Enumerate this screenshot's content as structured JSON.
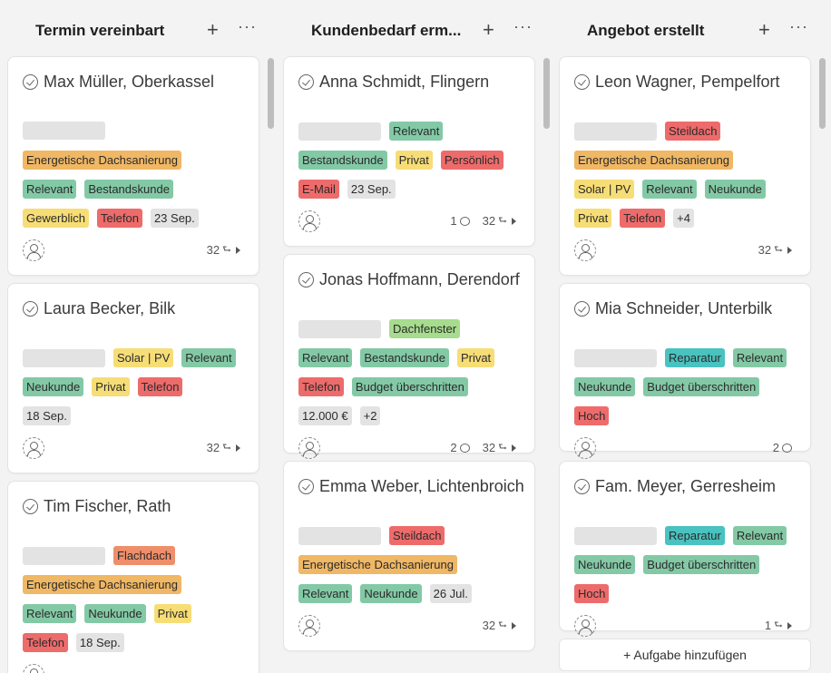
{
  "columns": [
    {
      "title": "Termin vereinbart",
      "plus": "+",
      "more": "···",
      "cards": [
        {
          "title": "Max Müller, Oberkassel",
          "rows": [
            [
              {
                "ph": true
              }
            ],
            [
              {
                "text": "Energetische Dachsanierung",
                "color": "orange"
              }
            ],
            [
              {
                "text": "Relevant",
                "color": "green"
              },
              {
                "text": "Bestandskunde",
                "color": "green"
              }
            ],
            [
              {
                "text": "Gewerblich",
                "color": "yellow"
              },
              {
                "text": "Telefon",
                "color": "red"
              },
              {
                "text": "23 Sep.",
                "color": "gray"
              }
            ]
          ],
          "subtasks": "32"
        },
        {
          "title": "Laura Becker, Bilk",
          "rows": [
            [
              {
                "ph": true
              },
              {
                "text": "Solar | PV",
                "color": "yellow"
              },
              {
                "text": "Relevant",
                "color": "green"
              }
            ],
            [
              {
                "text": "Neukunde",
                "color": "green"
              },
              {
                "text": "Privat",
                "color": "yellow"
              },
              {
                "text": "Telefon",
                "color": "red"
              }
            ],
            [
              {
                "text": "18 Sep.",
                "color": "gray"
              }
            ]
          ],
          "subtasks": "32"
        },
        {
          "title": "Tim Fischer, Rath",
          "rows": [
            [
              {
                "ph": true
              },
              {
                "text": "Flachdach",
                "color": "coral"
              }
            ],
            [
              {
                "text": "Energetische Dachsanierung",
                "color": "orange"
              }
            ],
            [
              {
                "text": "Relevant",
                "color": "green"
              },
              {
                "text": "Neukunde",
                "color": "green"
              },
              {
                "text": "Privat",
                "color": "yellow"
              }
            ],
            [
              {
                "text": "Telefon",
                "color": "red"
              },
              {
                "text": "18 Sep.",
                "color": "gray"
              }
            ]
          ]
        }
      ]
    },
    {
      "title": "Kundenbedarf erm...",
      "plus": "+",
      "more": "···",
      "cards": [
        {
          "title": "Anna Schmidt, Flingern",
          "rows": [
            [
              {
                "ph": true
              },
              {
                "text": "Relevant",
                "color": "green"
              }
            ],
            [
              {
                "text": "Bestandskunde",
                "color": "green"
              },
              {
                "text": "Privat",
                "color": "yellow"
              },
              {
                "text": "Persönlich",
                "color": "red"
              }
            ],
            [
              {
                "text": "E-Mail",
                "color": "red"
              },
              {
                "text": "23 Sep.",
                "color": "gray"
              }
            ]
          ],
          "comments": "1",
          "subtasks": "32"
        },
        {
          "title": "Jonas Hoffmann, Derendorf",
          "rows": [
            [
              {
                "ph": true
              },
              {
                "text": "Dachfenster",
                "color": "lime"
              }
            ],
            [
              {
                "text": "Relevant",
                "color": "green"
              },
              {
                "text": "Bestandskunde",
                "color": "green"
              },
              {
                "text": "Privat",
                "color": "yellow"
              }
            ],
            [
              {
                "text": "Telefon",
                "color": "red"
              },
              {
                "text": "Budget überschritten",
                "color": "green"
              }
            ],
            [
              {
                "text": "12.000 €",
                "color": "gray"
              },
              {
                "text": "+2",
                "color": "gray"
              }
            ]
          ],
          "comments": "2",
          "subtasks": "32"
        },
        {
          "title": "Emma Weber, Lichtenbroich",
          "rows": [
            [
              {
                "ph": true
              },
              {
                "text": "Steildach",
                "color": "red"
              }
            ],
            [
              {
                "text": "Energetische Dachsanierung",
                "color": "orange"
              }
            ],
            [
              {
                "text": "Relevant",
                "color": "green"
              },
              {
                "text": "Neukunde",
                "color": "green"
              },
              {
                "text": "26 Jul.",
                "color": "gray"
              }
            ]
          ],
          "subtasks": "32"
        }
      ]
    },
    {
      "title": "Angebot erstellt",
      "plus": "+",
      "more": "···",
      "add_task": "+ Aufgabe hinzufügen",
      "cards": [
        {
          "title": "Leon Wagner, Pempelfort",
          "rows": [
            [
              {
                "ph": true
              },
              {
                "text": "Steildach",
                "color": "red"
              }
            ],
            [
              {
                "text": "Energetische Dachsanierung",
                "color": "orange"
              }
            ],
            [
              {
                "text": "Solar | PV",
                "color": "yellow"
              },
              {
                "text": "Relevant",
                "color": "green"
              },
              {
                "text": "Neukunde",
                "color": "green"
              }
            ],
            [
              {
                "text": "Privat",
                "color": "yellow"
              },
              {
                "text": "Telefon",
                "color": "red"
              },
              {
                "text": "+4",
                "color": "gray"
              }
            ]
          ],
          "subtasks": "32"
        },
        {
          "title": "Mia Schneider, Unterbilk",
          "rows": [
            [
              {
                "ph": true
              },
              {
                "text": "Reparatur",
                "color": "teal"
              },
              {
                "text": "Relevant",
                "color": "green"
              }
            ],
            [
              {
                "text": "Neukunde",
                "color": "green"
              },
              {
                "text": "Budget überschritten",
                "color": "green"
              }
            ],
            [
              {
                "text": "Hoch",
                "color": "red"
              }
            ]
          ],
          "comments": "2"
        },
        {
          "title": "Fam. Meyer, Gerresheim",
          "rows": [
            [
              {
                "ph": true
              },
              {
                "text": "Reparatur",
                "color": "teal"
              },
              {
                "text": "Relevant",
                "color": "green"
              }
            ],
            [
              {
                "text": "Neukunde",
                "color": "green"
              },
              {
                "text": "Budget überschritten",
                "color": "green"
              }
            ],
            [
              {
                "text": "Hoch",
                "color": "red"
              }
            ]
          ],
          "subtasks": "1"
        }
      ]
    }
  ]
}
